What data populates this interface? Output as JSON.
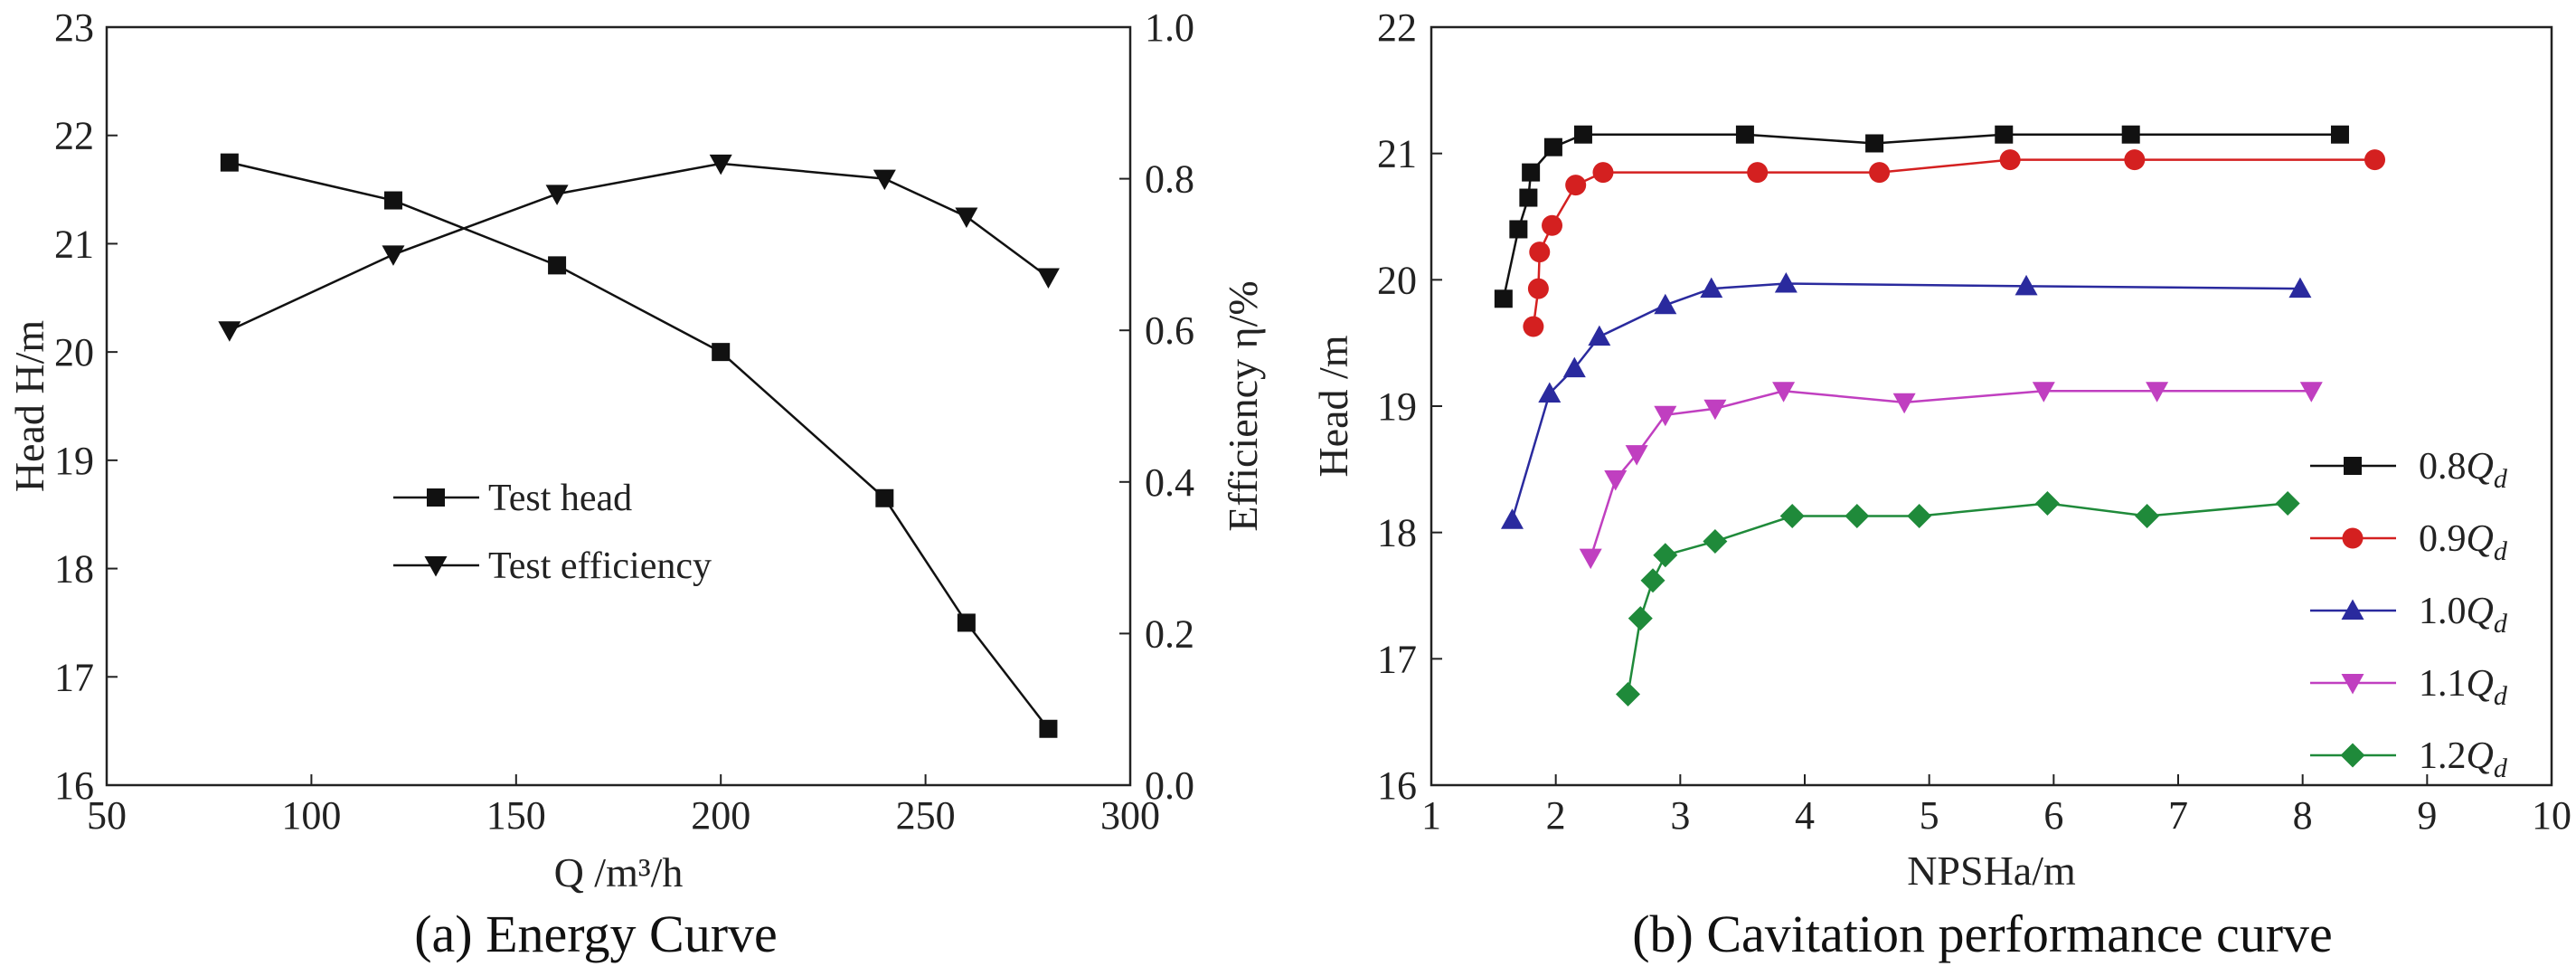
{
  "chart_data": [
    {
      "type": "line",
      "caption": "(a) Energy Curve",
      "xlabel": "Q  /m³/h",
      "ylabel": "Head H/m",
      "y2label": "Efficiency η/%",
      "xlim": [
        50,
        300
      ],
      "ylim": [
        16,
        23
      ],
      "y2lim": [
        0.0,
        1.0
      ],
      "x_ticks": [
        "50",
        "100",
        "150",
        "200",
        "250",
        "300"
      ],
      "y_ticks": [
        "16",
        "17",
        "18",
        "19",
        "20",
        "21",
        "22",
        "23"
      ],
      "y2_ticks": [
        "0.0",
        "0.2",
        "0.4",
        "0.6",
        "0.8",
        "1.0"
      ],
      "legend_position": "center",
      "series": [
        {
          "name": "Test head",
          "axis": "left",
          "marker": "square",
          "x": [
            80,
            120,
            160,
            200,
            240,
            260,
            280
          ],
          "y": [
            21.75,
            21.4,
            20.8,
            20.0,
            18.65,
            17.5,
            16.52
          ]
        },
        {
          "name": "Test efficiency",
          "axis": "right",
          "marker": "triangle-down",
          "x": [
            80,
            120,
            160,
            200,
            240,
            260,
            280
          ],
          "y": [
            0.6,
            0.7,
            0.78,
            0.82,
            0.8,
            0.75,
            0.67
          ]
        }
      ]
    },
    {
      "type": "line",
      "caption": "(b) Cavitation performance curve",
      "xlabel": "NPSHa/m",
      "ylabel": "Head /m",
      "xlim": [
        1,
        10
      ],
      "ylim": [
        16,
        22
      ],
      "x_ticks": [
        "1",
        "2",
        "3",
        "4",
        "5",
        "6",
        "7",
        "8",
        "9",
        "10"
      ],
      "y_ticks": [
        "16",
        "17",
        "18",
        "19",
        "20",
        "21",
        "22"
      ],
      "legend_position": "right",
      "series": [
        {
          "name": "0.8",
          "suffix": "Q",
          "subscript": "d",
          "color": "#111111",
          "marker": "square",
          "x": [
            1.58,
            1.7,
            1.78,
            1.8,
            1.98,
            2.22,
            3.52,
            4.56,
            5.6,
            6.62,
            8.3
          ],
          "y": [
            19.85,
            20.4,
            20.65,
            20.85,
            21.05,
            21.15,
            21.15,
            21.08,
            21.15,
            21.15,
            21.15
          ]
        },
        {
          "name": "0.9",
          "suffix": "Q",
          "subscript": "d",
          "color": "#d42020",
          "marker": "circle",
          "x": [
            1.82,
            1.86,
            1.87,
            1.97,
            2.16,
            2.38,
            3.62,
            4.6,
            5.65,
            6.65,
            8.58
          ],
          "y": [
            19.63,
            19.93,
            20.22,
            20.43,
            20.75,
            20.85,
            20.85,
            20.85,
            20.95,
            20.95,
            20.95
          ]
        },
        {
          "name": "1.0",
          "suffix": "Q",
          "subscript": "d",
          "color": "#2a2a9e",
          "marker": "triangle-up",
          "x": [
            1.65,
            1.95,
            2.15,
            2.35,
            2.88,
            3.25,
            3.85,
            5.78,
            7.98
          ],
          "y": [
            18.1,
            19.1,
            19.3,
            19.55,
            19.8,
            19.93,
            19.97,
            19.95,
            19.93
          ]
        },
        {
          "name": "1.1",
          "suffix": "Q",
          "subscript": "d",
          "color": "#c03fc0",
          "marker": "triangle-down",
          "x": [
            2.28,
            2.48,
            2.65,
            2.88,
            3.28,
            3.83,
            4.8,
            5.92,
            6.83,
            8.07
          ],
          "y": [
            17.8,
            18.42,
            18.62,
            18.93,
            18.98,
            19.12,
            19.03,
            19.12,
            19.12,
            19.12
          ]
        },
        {
          "name": "1.2",
          "suffix": "Q",
          "subscript": "d",
          "color": "#1f8a3a",
          "marker": "diamond",
          "x": [
            2.58,
            2.68,
            2.78,
            2.88,
            3.28,
            3.9,
            4.42,
            4.92,
            5.95,
            6.75,
            7.88
          ],
          "y": [
            16.72,
            17.32,
            17.62,
            17.82,
            17.93,
            18.13,
            18.13,
            18.13,
            18.23,
            18.13,
            18.23
          ]
        }
      ]
    }
  ]
}
